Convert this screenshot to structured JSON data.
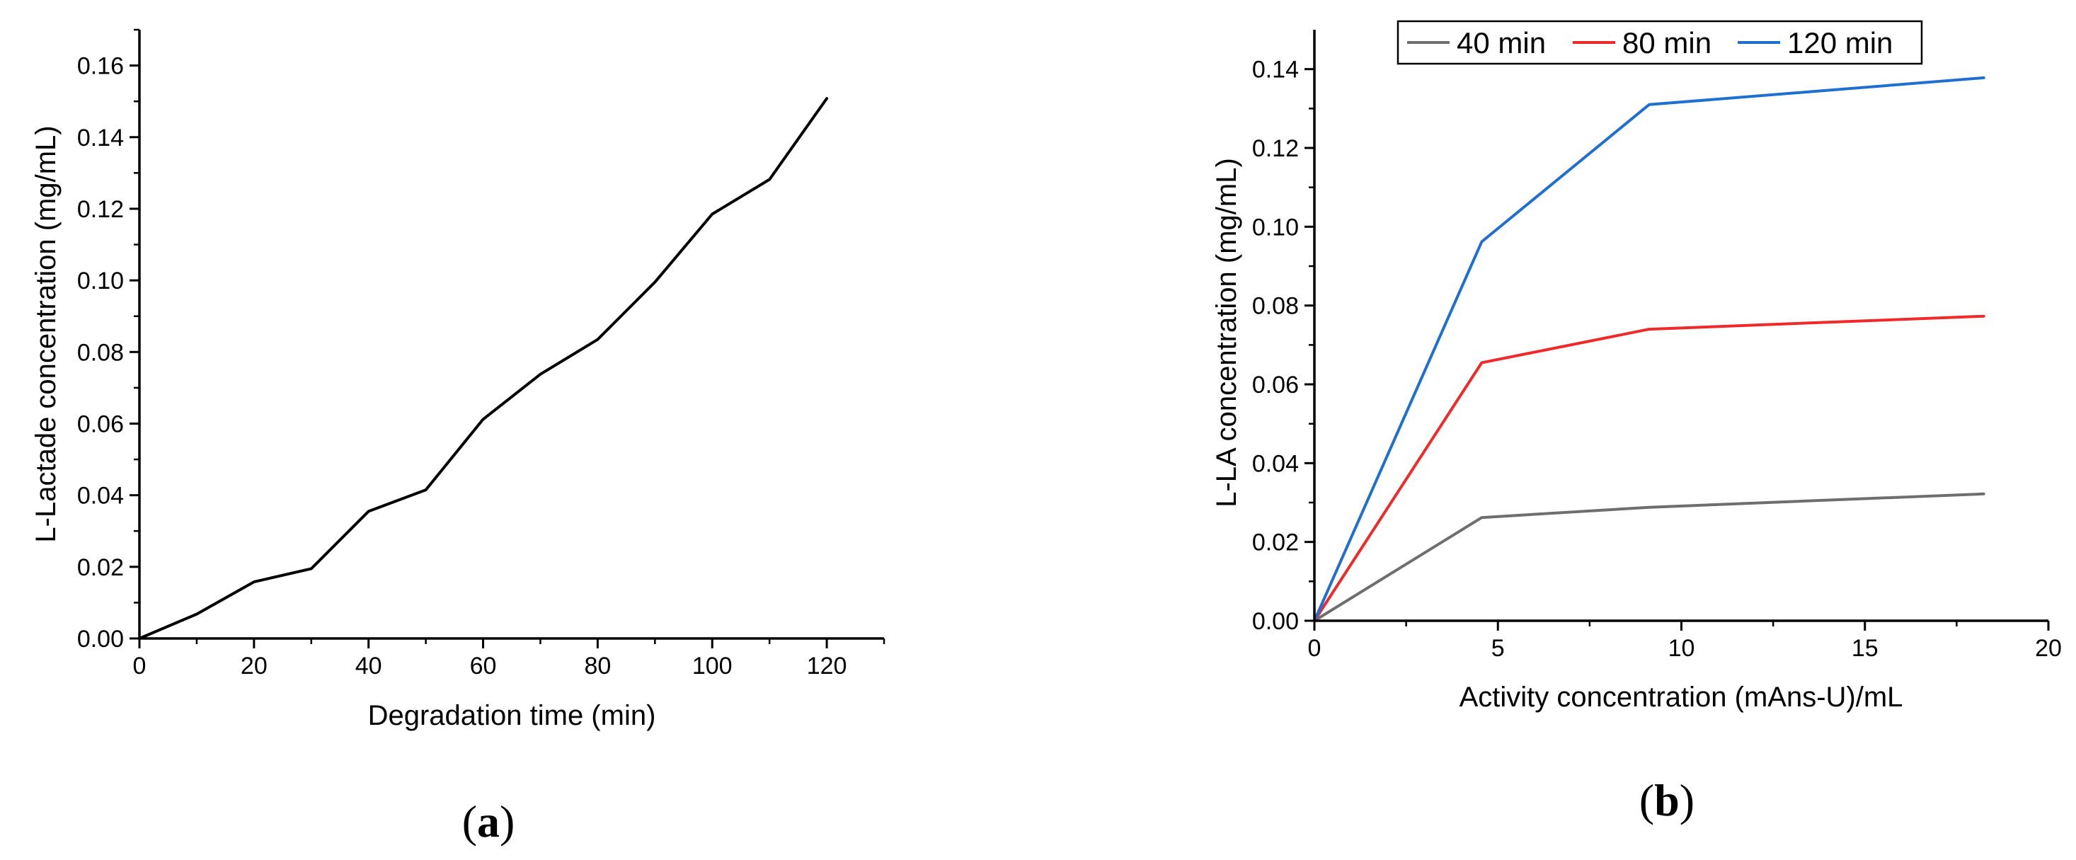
{
  "chart_data": [
    {
      "panel_label": "a",
      "type": "line",
      "title": "",
      "xlabel": "Degradation time (min)",
      "ylabel": "L-Lactade concentration (mg/mL)",
      "xlim": [
        0,
        130
      ],
      "ylim": [
        0,
        0.17
      ],
      "xticks": [
        0,
        20,
        40,
        60,
        80,
        100,
        120
      ],
      "xtick_labels": [
        "0",
        "20",
        "40",
        "60",
        "80",
        "100",
        "120"
      ],
      "yticks": [
        0,
        0.02,
        0.04,
        0.06,
        0.08,
        0.1,
        0.12,
        0.14,
        0.16
      ],
      "ytick_labels": [
        "0.00",
        "0.02",
        "0.04",
        "0.06",
        "0.08",
        "0.10",
        "0.12",
        "0.14",
        "0.16"
      ],
      "grid": false,
      "series": [
        {
          "name": "L-Lactade",
          "color": "#000000",
          "x": [
            0,
            10,
            20,
            30,
            40,
            50,
            60,
            70,
            80,
            90,
            100,
            110,
            120
          ],
          "y": [
            0.0,
            0.0068,
            0.0158,
            0.0195,
            0.0355,
            0.0415,
            0.0612,
            0.0738,
            0.0835,
            0.0995,
            0.1185,
            0.1282,
            0.1508
          ]
        }
      ]
    },
    {
      "panel_label": "b",
      "type": "line",
      "title": "",
      "xlabel": "Activity concentration (mAns-U)/mL",
      "ylabel": "L-LA concentration (mg/mL)",
      "xlim": [
        0,
        20
      ],
      "ylim": [
        0,
        0.15
      ],
      "xticks": [
        0,
        5,
        10,
        15,
        20
      ],
      "xtick_labels": [
        "0",
        "5",
        "10",
        "15",
        "20"
      ],
      "yticks": [
        0,
        0.02,
        0.04,
        0.06,
        0.08,
        0.1,
        0.12,
        0.14
      ],
      "ytick_labels": [
        "0.00",
        "0.02",
        "0.04",
        "0.06",
        "0.08",
        "0.10",
        "0.12",
        "0.14"
      ],
      "grid": false,
      "legend_position": "top-center",
      "series": [
        {
          "name": "40 min",
          "color": "#6e6e6e",
          "x": [
            0,
            4.56,
            9.12,
            18.24
          ],
          "y": [
            0.0,
            0.0262,
            0.0288,
            0.0322
          ]
        },
        {
          "name": "80 min",
          "color": "#ee2a2a",
          "x": [
            0,
            4.56,
            9.12,
            18.24
          ],
          "y": [
            0.0,
            0.0655,
            0.074,
            0.0773
          ]
        },
        {
          "name": "120 min",
          "color": "#1f6fd1",
          "x": [
            0,
            4.56,
            9.12,
            18.24
          ],
          "y": [
            0.0,
            0.0962,
            0.131,
            0.1378
          ]
        }
      ]
    }
  ]
}
